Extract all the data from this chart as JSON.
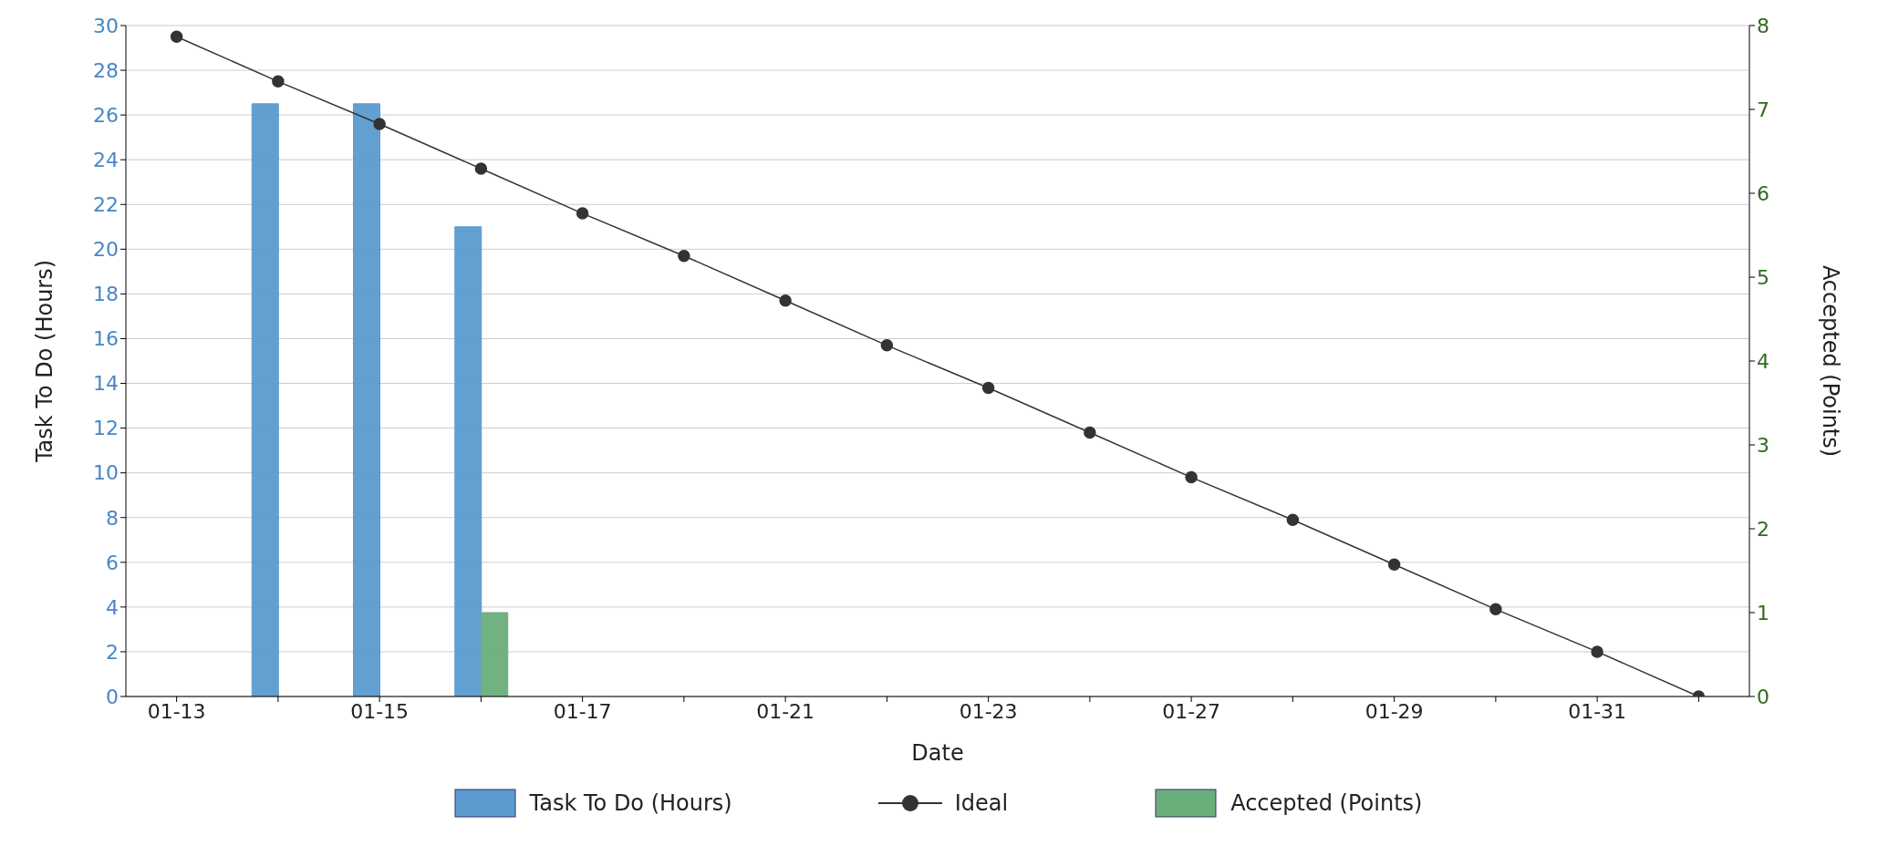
{
  "chart_data": {
    "type": "bar",
    "xlabel": "Date",
    "ylabel": "Task To Do (Hours)",
    "y2label": "Accepted (Points)",
    "categories": [
      "01-13",
      null,
      "01-15",
      null,
      "01-17",
      null,
      "01-21",
      null,
      "01-23",
      null,
      "01-27",
      null,
      "01-29",
      null,
      "01-31",
      null
    ],
    "series": [
      {
        "name": "Task To Do (Hours)",
        "color": "#5b9bd0",
        "values": [
          null,
          26.5,
          26.5,
          21,
          null,
          null,
          null,
          null,
          null,
          null,
          null,
          null,
          null,
          null,
          null,
          null
        ]
      },
      {
        "name": "Ideal",
        "type": "line",
        "color": "#333333",
        "marker": "circle",
        "values": [
          29.5,
          27.5,
          25.6,
          23.6,
          21.6,
          19.7,
          17.7,
          15.7,
          13.8,
          11.8,
          9.8,
          7.9,
          5.9,
          3.9,
          2.0,
          0
        ]
      },
      {
        "name": "Accepted (Points)",
        "axis": "y2",
        "color": "#6aae7b",
        "values": [
          null,
          null,
          null,
          1,
          null,
          null,
          null,
          null,
          null,
          null,
          null,
          null,
          null,
          null,
          null,
          null
        ]
      }
    ],
    "ylim": [
      0,
      30
    ],
    "yticks": [
      0,
      2,
      4,
      6,
      8,
      10,
      12,
      14,
      16,
      18,
      20,
      22,
      24,
      26,
      28,
      30
    ],
    "y2lim": [
      0,
      8
    ],
    "y2ticks": [
      0,
      1,
      2,
      3,
      4,
      5,
      6,
      7,
      8
    ],
    "grid": "y",
    "legend": "bottom"
  }
}
